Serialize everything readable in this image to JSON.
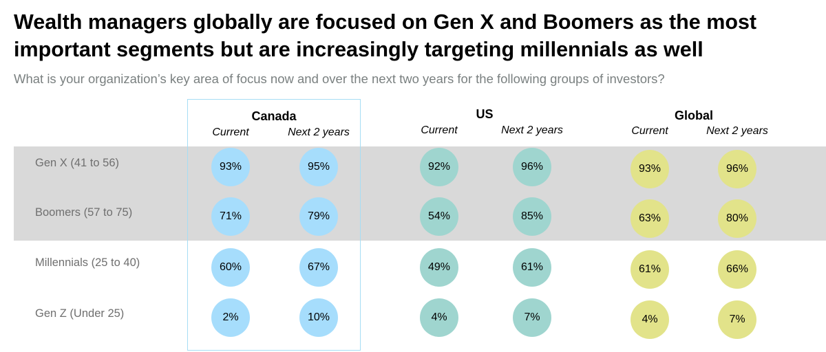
{
  "title": "Wealth managers globally are focused on Gen X and Boomers as the most important segments but are increasingly targeting millennials as well",
  "subtitle": "What is your organization’s key area of focus now and over the next two years for the following groups of investors?",
  "colors": {
    "canada": "#a6ddfc",
    "us": "#9fd5cf",
    "global": "#e2e38a",
    "band": "#d9d9d9",
    "highlight_border": "#a6ddf4"
  },
  "chart_data": {
    "type": "table",
    "title": "Wealth managers globally are focused on Gen X and Boomers as the most important segments but are increasingly targeting millennials as well",
    "subtitle": "What is your organization’s key area of focus now and over the next two years for the following groups of investors?",
    "regions": [
      "Canada",
      "US",
      "Global"
    ],
    "periods": [
      "Current",
      "Next 2 years"
    ],
    "rows": [
      "Gen X (41 to 56)",
      "Boomers (57 to 75)",
      "Millennials (25 to 40)",
      "Gen Z (Under 25)"
    ],
    "series": [
      {
        "region": "Canada",
        "current": [
          "93%",
          "71%",
          "60%",
          "2%"
        ],
        "next_2_years": [
          "95%",
          "79%",
          "67%",
          "10%"
        ]
      },
      {
        "region": "US",
        "current": [
          "92%",
          "54%",
          "49%",
          "4%"
        ],
        "next_2_years": [
          "96%",
          "85%",
          "61%",
          "7%"
        ]
      },
      {
        "region": "Global",
        "current": [
          "93%",
          "63%",
          "61%",
          "4%"
        ],
        "next_2_years": [
          "96%",
          "80%",
          "66%",
          "7%"
        ]
      }
    ],
    "highlighted_region": "Canada",
    "shaded_rows": [
      "Gen X (41 to 56)",
      "Boomers (57 to 75)"
    ]
  }
}
